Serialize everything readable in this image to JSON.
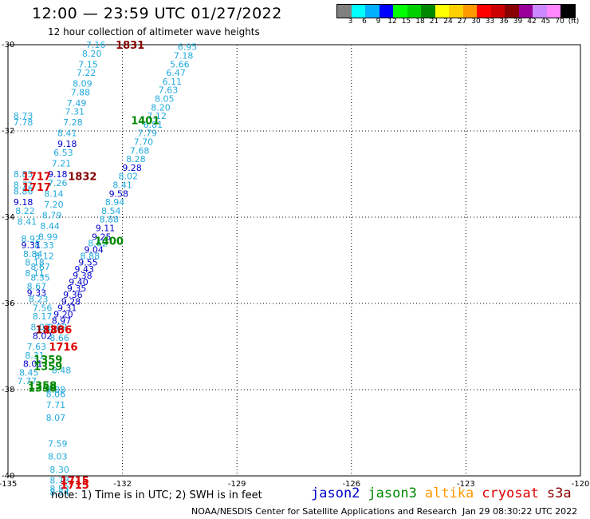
{
  "header": {
    "title": "12:00 — 23:59 UTC 01/27/2022",
    "subtitle": "12 hour collection of altimeter wave heights"
  },
  "legend": {
    "colors": [
      "#808080",
      "#00ffff",
      "#00b0ff",
      "#0000ff",
      "#00ff00",
      "#00d000",
      "#008800",
      "#ffff00",
      "#ffd000",
      "#ff9900",
      "#ff0000",
      "#cc0000",
      "#880000",
      "#990099",
      "#cc88ff",
      "#ff88ff",
      "#000000"
    ],
    "labels": [
      "3",
      "6",
      "9",
      "12",
      "15",
      "18",
      "21",
      "24",
      "27",
      "30",
      "33",
      "36",
      "39",
      "42",
      "45",
      "70",
      "(ft)"
    ]
  },
  "map": {
    "lon_range": [
      -135,
      -120
    ],
    "lat_range": [
      -40,
      -30
    ],
    "lon_ticks": [
      "-135",
      "-132",
      "-129",
      "-126",
      "-123",
      "-120"
    ],
    "lat_ticks": [
      "-30",
      "-32",
      "-34",
      "-36",
      "-38",
      "-40"
    ]
  },
  "chart_data": {
    "type": "scatter",
    "points": [
      {
        "lon": -132.7,
        "lat": -30.0,
        "v": "7.16",
        "c": "#22aadd"
      },
      {
        "lon": -132.8,
        "lat": -30.2,
        "v": "8.20",
        "c": "#22aadd"
      },
      {
        "lon": -132.9,
        "lat": -30.45,
        "v": "7.15",
        "c": "#22aadd"
      },
      {
        "lon": -132.95,
        "lat": -30.65,
        "v": "7.22",
        "c": "#22aadd"
      },
      {
        "lon": -133.05,
        "lat": -30.9,
        "v": "8.09",
        "c": "#22aadd"
      },
      {
        "lon": -133.1,
        "lat": -31.1,
        "v": "7.88",
        "c": "#22aadd"
      },
      {
        "lon": -133.2,
        "lat": -31.35,
        "v": "7.49",
        "c": "#22aadd"
      },
      {
        "lon": -133.25,
        "lat": -31.55,
        "v": "7.31",
        "c": "#22aadd"
      },
      {
        "lon": -133.3,
        "lat": -31.8,
        "v": "7.28",
        "c": "#22aadd"
      },
      {
        "lon": -133.45,
        "lat": -32.05,
        "v": "8.41",
        "c": "#22aadd"
      },
      {
        "lon": -133.45,
        "lat": -32.3,
        "v": "9.18",
        "c": "#0000cc"
      },
      {
        "lon": -133.55,
        "lat": -32.5,
        "v": "6.53",
        "c": "#22aadd"
      },
      {
        "lon": -133.6,
        "lat": -32.75,
        "v": "7.21",
        "c": "#22aadd"
      },
      {
        "lon": -133.7,
        "lat": -33.0,
        "v": "9.18",
        "c": "#0000cc"
      },
      {
        "lon": -133.7,
        "lat": -33.2,
        "v": "7.26",
        "c": "#22aadd"
      },
      {
        "lon": -133.8,
        "lat": -33.45,
        "v": "8.14",
        "c": "#22aadd"
      },
      {
        "lon": -133.8,
        "lat": -33.7,
        "v": "7.20",
        "c": "#22aadd"
      },
      {
        "lon": -133.85,
        "lat": -33.95,
        "v": "8.79",
        "c": "#22aadd"
      },
      {
        "lon": -133.9,
        "lat": -34.2,
        "v": "8.44",
        "c": "#22aadd"
      },
      {
        "lon": -133.95,
        "lat": -34.45,
        "v": "8.99",
        "c": "#22aadd"
      },
      {
        "lon": -134.05,
        "lat": -34.65,
        "v": "8.33",
        "c": "#22aadd"
      },
      {
        "lon": -134.05,
        "lat": -34.9,
        "v": "8.12",
        "c": "#22aadd"
      },
      {
        "lon": -134.15,
        "lat": -35.15,
        "v": "8.67",
        "c": "#22aadd"
      },
      {
        "lon": -134.15,
        "lat": -35.4,
        "v": "8.35",
        "c": "#22aadd"
      },
      {
        "lon": -134.6,
        "lat": -31.65,
        "v": "8.73",
        "c": "#22aadd"
      },
      {
        "lon": -134.6,
        "lat": -31.8,
        "v": "7.78",
        "c": "#22aadd"
      },
      {
        "lon": -134.6,
        "lat": -33.0,
        "v": "8.85",
        "c": "#22aadd"
      },
      {
        "lon": -134.6,
        "lat": -33.25,
        "v": "8.72",
        "c": "#22aadd"
      },
      {
        "lon": -134.6,
        "lat": -33.4,
        "v": "8.86",
        "c": "#22aadd"
      },
      {
        "lon": -134.6,
        "lat": -33.65,
        "v": "9.18",
        "c": "#0000cc"
      },
      {
        "lon": -134.55,
        "lat": -33.85,
        "v": "8.22",
        "c": "#22aadd"
      },
      {
        "lon": -134.5,
        "lat": -34.1,
        "v": "8.41",
        "c": "#22aadd"
      },
      {
        "lon": -134.4,
        "lat": -34.5,
        "v": "8.92",
        "c": "#22aadd"
      },
      {
        "lon": -134.4,
        "lat": -34.65,
        "v": "9.31",
        "c": "#0000cc"
      },
      {
        "lon": -134.35,
        "lat": -34.85,
        "v": "8.84",
        "c": "#22aadd"
      },
      {
        "lon": -134.3,
        "lat": -35.05,
        "v": "8.18",
        "c": "#22aadd"
      },
      {
        "lon": -134.3,
        "lat": -35.3,
        "v": "8.11",
        "c": "#22aadd"
      },
      {
        "lon": -134.25,
        "lat": -35.6,
        "v": "8.67",
        "c": "#22aadd"
      },
      {
        "lon": -134.25,
        "lat": -35.75,
        "v": "9.33",
        "c": "#0000cc"
      },
      {
        "lon": -134.2,
        "lat": -35.9,
        "v": "8.23",
        "c": "#22aadd"
      },
      {
        "lon": -134.1,
        "lat": -36.1,
        "v": "7.56",
        "c": "#22aadd"
      },
      {
        "lon": -134.1,
        "lat": -36.3,
        "v": "8.17",
        "c": "#22aadd"
      },
      {
        "lon": -134.15,
        "lat": -36.55,
        "v": "8.03",
        "c": "#22aadd"
      },
      {
        "lon": -134.1,
        "lat": -36.75,
        "v": "8.02",
        "c": "#0000cc"
      },
      {
        "lon": -134.25,
        "lat": -37.0,
        "v": "7.63",
        "c": "#22aadd"
      },
      {
        "lon": -134.3,
        "lat": -37.2,
        "v": "8.31",
        "c": "#22aadd"
      },
      {
        "lon": -134.35,
        "lat": -37.4,
        "v": "8.01",
        "c": "#0000cc"
      },
      {
        "lon": -134.45,
        "lat": -37.6,
        "v": "8.45",
        "c": "#22aadd"
      },
      {
        "lon": -134.5,
        "lat": -37.8,
        "v": "7.77",
        "c": "#22aadd"
      },
      {
        "lon": -133.65,
        "lat": -36.8,
        "v": "8.66",
        "c": "#22aadd"
      },
      {
        "lon": -133.6,
        "lat": -37.55,
        "v": "8.48",
        "c": "#22aadd"
      },
      {
        "lon": -133.75,
        "lat": -38.0,
        "v": "7.88",
        "c": "#22aadd"
      },
      {
        "lon": -133.75,
        "lat": -38.1,
        "v": "8.06",
        "c": "#22aadd"
      },
      {
        "lon": -133.75,
        "lat": -38.35,
        "v": "7.71",
        "c": "#22aadd"
      },
      {
        "lon": -133.75,
        "lat": -38.65,
        "v": "8.07",
        "c": "#22aadd"
      },
      {
        "lon": -133.7,
        "lat": -39.25,
        "v": "7.59",
        "c": "#22aadd"
      },
      {
        "lon": -133.7,
        "lat": -39.55,
        "v": "8.03",
        "c": "#22aadd"
      },
      {
        "lon": -133.65,
        "lat": -39.85,
        "v": "8.30",
        "c": "#22aadd"
      },
      {
        "lon": -133.65,
        "lat": -40.1,
        "v": "8.78",
        "c": "#22aadd"
      },
      {
        "lon": -133.65,
        "lat": -40.3,
        "v": "8.53",
        "c": "#22aadd"
      },
      {
        "lon": -133.65,
        "lat": -40.38,
        "v": "8.54",
        "c": "#22aadd"
      },
      {
        "lon": -130.3,
        "lat": -30.05,
        "v": "6.95",
        "c": "#22aadd"
      },
      {
        "lon": -130.4,
        "lat": -30.25,
        "v": "7.18",
        "c": "#22aadd"
      },
      {
        "lon": -130.5,
        "lat": -30.45,
        "v": "5.66",
        "c": "#22aadd"
      },
      {
        "lon": -130.6,
        "lat": -30.65,
        "v": "6.47",
        "c": "#22aadd"
      },
      {
        "lon": -130.7,
        "lat": -30.85,
        "v": "6.11",
        "c": "#22aadd"
      },
      {
        "lon": -130.8,
        "lat": -31.05,
        "v": "7.63",
        "c": "#22aadd"
      },
      {
        "lon": -130.9,
        "lat": -31.25,
        "v": "8.05",
        "c": "#22aadd"
      },
      {
        "lon": -131.0,
        "lat": -31.45,
        "v": "8.20",
        "c": "#22aadd"
      },
      {
        "lon": -131.1,
        "lat": -31.65,
        "v": "7.12",
        "c": "#22aadd"
      },
      {
        "lon": -131.2,
        "lat": -31.85,
        "v": "6.81",
        "c": "#22aadd"
      },
      {
        "lon": -131.35,
        "lat": -32.05,
        "v": "7.79",
        "c": "#22aadd"
      },
      {
        "lon": -131.45,
        "lat": -32.25,
        "v": "7.70",
        "c": "#22aadd"
      },
      {
        "lon": -131.55,
        "lat": -32.45,
        "v": "7.68",
        "c": "#22aadd"
      },
      {
        "lon": -131.65,
        "lat": -32.65,
        "v": "8.28",
        "c": "#22aadd"
      },
      {
        "lon": -131.75,
        "lat": -32.85,
        "v": "9.28",
        "c": "#0000cc"
      },
      {
        "lon": -131.85,
        "lat": -33.05,
        "v": "8.02",
        "c": "#22aadd"
      },
      {
        "lon": -132.0,
        "lat": -33.25,
        "v": "8.41",
        "c": "#22aadd"
      },
      {
        "lon": -132.1,
        "lat": -33.45,
        "v": "9.58",
        "c": "#0000cc"
      },
      {
        "lon": -132.2,
        "lat": -33.65,
        "v": "8.94",
        "c": "#22aadd"
      },
      {
        "lon": -132.3,
        "lat": -33.85,
        "v": "8.54",
        "c": "#22aadd"
      },
      {
        "lon": -132.35,
        "lat": -34.05,
        "v": "8.88",
        "c": "#22aadd"
      },
      {
        "lon": -132.45,
        "lat": -34.25,
        "v": "9.11",
        "c": "#0000cc"
      },
      {
        "lon": -132.55,
        "lat": -34.45,
        "v": "9.25",
        "c": "#0000cc"
      },
      {
        "lon": -132.65,
        "lat": -34.6,
        "v": "8.62",
        "c": "#22aadd"
      },
      {
        "lon": -132.75,
        "lat": -34.75,
        "v": "9.04",
        "c": "#0000cc"
      },
      {
        "lon": -132.85,
        "lat": -34.9,
        "v": "8.88",
        "c": "#22aadd"
      },
      {
        "lon": -132.9,
        "lat": -35.05,
        "v": "9.55",
        "c": "#0000cc"
      },
      {
        "lon": -133.0,
        "lat": -35.2,
        "v": "9.43",
        "c": "#0000cc"
      },
      {
        "lon": -133.05,
        "lat": -35.35,
        "v": "9.38",
        "c": "#0000cc"
      },
      {
        "lon": -133.15,
        "lat": -35.5,
        "v": "9.40",
        "c": "#0000cc"
      },
      {
        "lon": -133.2,
        "lat": -35.65,
        "v": "9.35",
        "c": "#0000cc"
      },
      {
        "lon": -133.3,
        "lat": -35.8,
        "v": "9.36",
        "c": "#0000cc"
      },
      {
        "lon": -133.35,
        "lat": -35.95,
        "v": "9.28",
        "c": "#0000cc"
      },
      {
        "lon": -133.45,
        "lat": -36.1,
        "v": "9.31",
        "c": "#0000cc"
      },
      {
        "lon": -133.55,
        "lat": -36.25,
        "v": "9.20",
        "c": "#0000cc"
      },
      {
        "lon": -133.6,
        "lat": -36.4,
        "v": "8.97",
        "c": "#0000cc"
      },
      {
        "lon": -133.7,
        "lat": -36.55,
        "v": "8.82",
        "c": "#22aadd"
      }
    ],
    "times": [
      {
        "lon": -131.8,
        "lat": -30.0,
        "t": "1831",
        "c": "#880000"
      },
      {
        "lon": -131.4,
        "lat": -31.75,
        "t": "1401",
        "c": "#008800"
      },
      {
        "lon": -133.05,
        "lat": -33.05,
        "t": "1832",
        "c": "#880000"
      },
      {
        "lon": -134.25,
        "lat": -33.05,
        "t": "1717",
        "c": "#dd0000"
      },
      {
        "lon": -134.25,
        "lat": -33.3,
        "t": "1717",
        "c": "#dd0000"
      },
      {
        "lon": -132.35,
        "lat": -34.55,
        "t": "1400",
        "c": "#008800"
      },
      {
        "lon": -133.9,
        "lat": -36.6,
        "t": "1836",
        "c": "#880000"
      },
      {
        "lon": -133.7,
        "lat": -36.6,
        "t": "1836",
        "c": "#dd0000"
      },
      {
        "lon": -133.55,
        "lat": -37.0,
        "t": "1716",
        "c": "#dd0000"
      },
      {
        "lon": -133.95,
        "lat": -37.3,
        "t": "1359",
        "c": "#008800"
      },
      {
        "lon": -133.95,
        "lat": -37.45,
        "t": "1359",
        "c": "#008800"
      },
      {
        "lon": -134.1,
        "lat": -37.9,
        "t": "1358",
        "c": "#008800"
      },
      {
        "lon": -134.1,
        "lat": -37.95,
        "t": "1358",
        "c": "#008800"
      },
      {
        "lon": -133.25,
        "lat": -40.1,
        "t": "1715",
        "c": "#dd0000"
      },
      {
        "lon": -133.25,
        "lat": -40.2,
        "t": "1715",
        "c": "#dd0000"
      }
    ]
  },
  "footer": {
    "note": "note: 1) Time is in UTC; 2) SWH is in feet",
    "credit": "NOAA/NESDIS Center for Satellite Applications and Research",
    "timestamp": "Jan 29 08:30:22 UTC 2022",
    "missions": [
      {
        "name": "jason2",
        "color": "#0000cc"
      },
      {
        "name": "jason3",
        "color": "#008800"
      },
      {
        "name": "altika",
        "color": "#ff9900"
      },
      {
        "name": "cryosat",
        "color": "#dd0000"
      },
      {
        "name": "s3a",
        "color": "#880000"
      }
    ]
  }
}
